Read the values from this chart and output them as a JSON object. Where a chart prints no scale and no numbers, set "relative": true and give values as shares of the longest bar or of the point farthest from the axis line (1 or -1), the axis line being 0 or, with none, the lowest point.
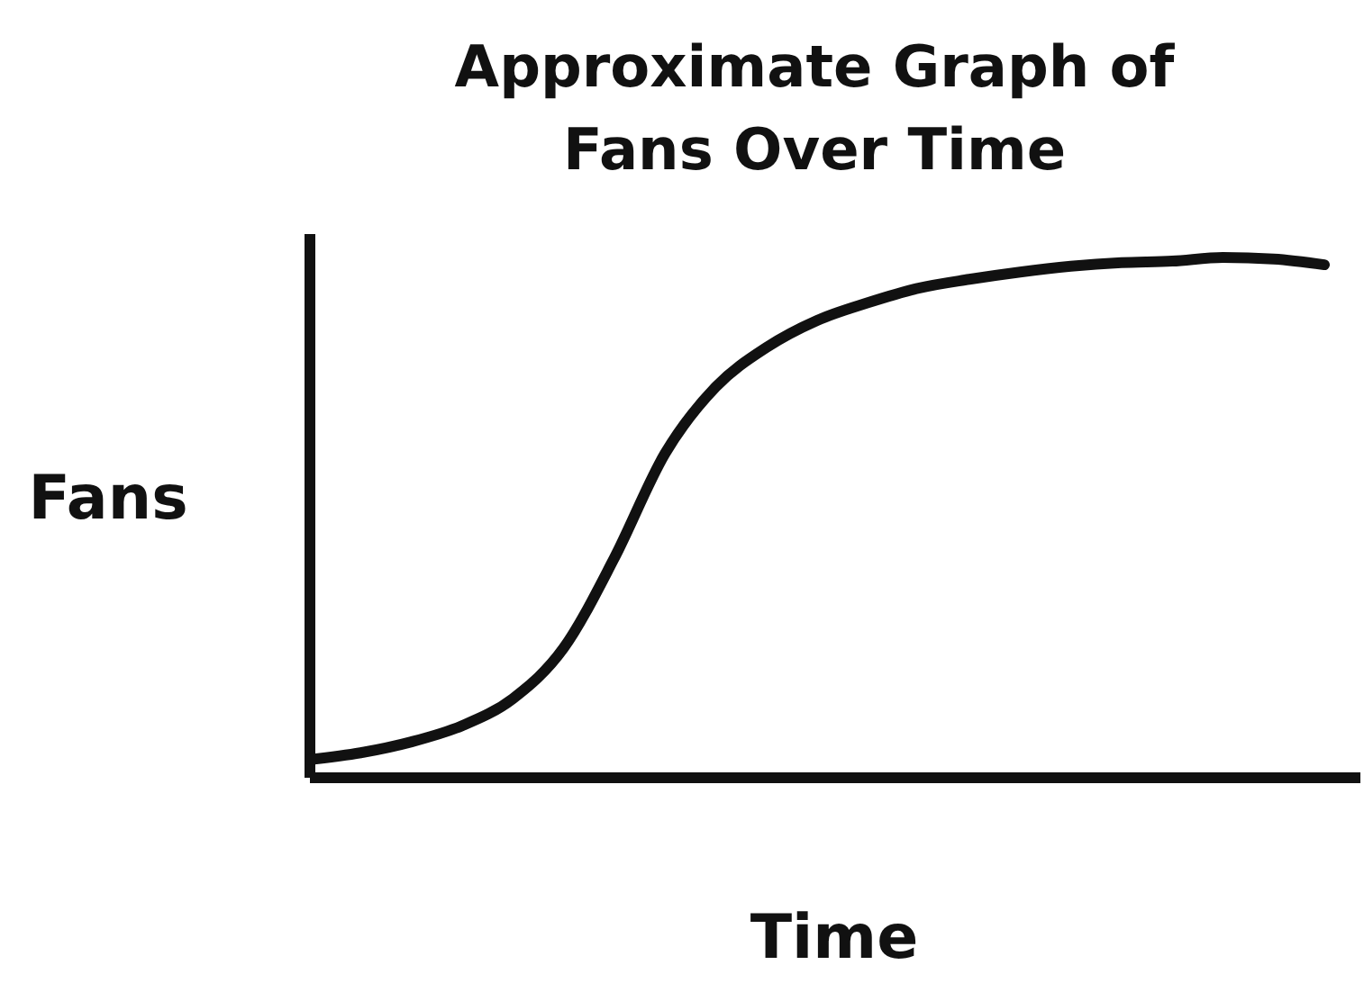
{
  "chart_data": {
    "type": "line",
    "title": "Approximate Graph of Fans Over Time",
    "xlabel": "Time",
    "ylabel": "Fans",
    "relative": true,
    "categories": [
      null,
      null,
      null,
      null,
      null,
      null,
      null,
      null,
      null,
      null,
      null,
      null,
      null,
      null,
      null,
      null,
      null,
      null,
      null,
      null,
      null
    ],
    "series": [
      {
        "color": "#111111",
        "values": [
          0.035,
          0.048,
          0.069,
          0.1,
          0.152,
          0.249,
          0.422,
          0.623,
          0.751,
          0.827,
          0.879,
          0.913,
          0.941,
          0.958,
          0.972,
          0.983,
          0.99,
          0.993,
          1,
          0.997,
          0.986
        ]
      }
    ],
    "marker": "none",
    "line_style": "solid"
  }
}
